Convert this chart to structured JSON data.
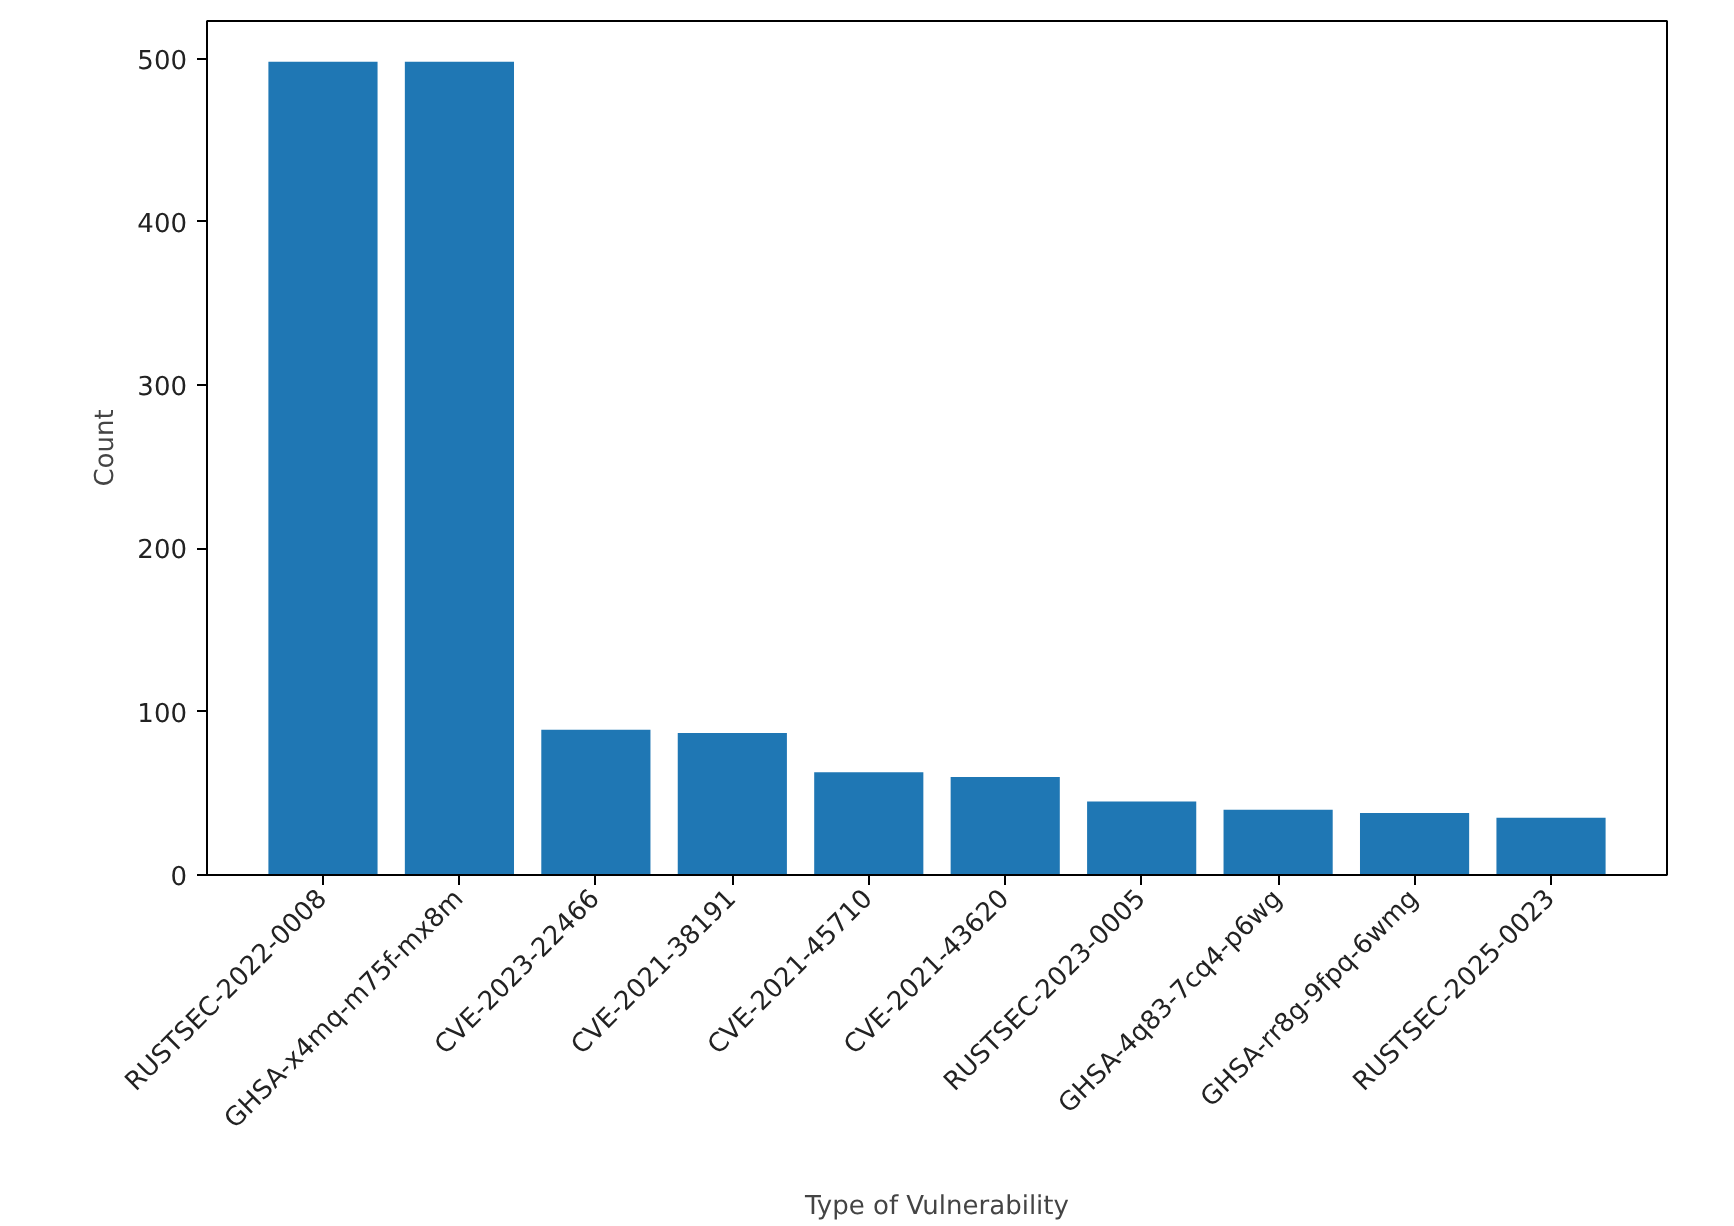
{
  "chart_data": {
    "type": "bar",
    "xlabel": "Type of Vulnerability",
    "ylabel": "Count",
    "categories": [
      "RUSTSEC-2022-0008",
      "GHSA-x4mq-m75f-mx8m",
      "CVE-2023-22466",
      "CVE-2021-38191",
      "CVE-2021-45710",
      "CVE-2021-43620",
      "RUSTSEC-2023-0005",
      "GHSA-4q83-7cq4-p6wg",
      "GHSA-rr8g-9fpq-6wmg",
      "RUSTSEC-2025-0023"
    ],
    "values": [
      498,
      498,
      89,
      87,
      63,
      60,
      45,
      40,
      38,
      35
    ],
    "color": "#1f77b4",
    "ylim": [
      0,
      523
    ],
    "yticks": [
      0,
      100,
      200,
      300,
      400,
      500
    ],
    "grid": false
  }
}
